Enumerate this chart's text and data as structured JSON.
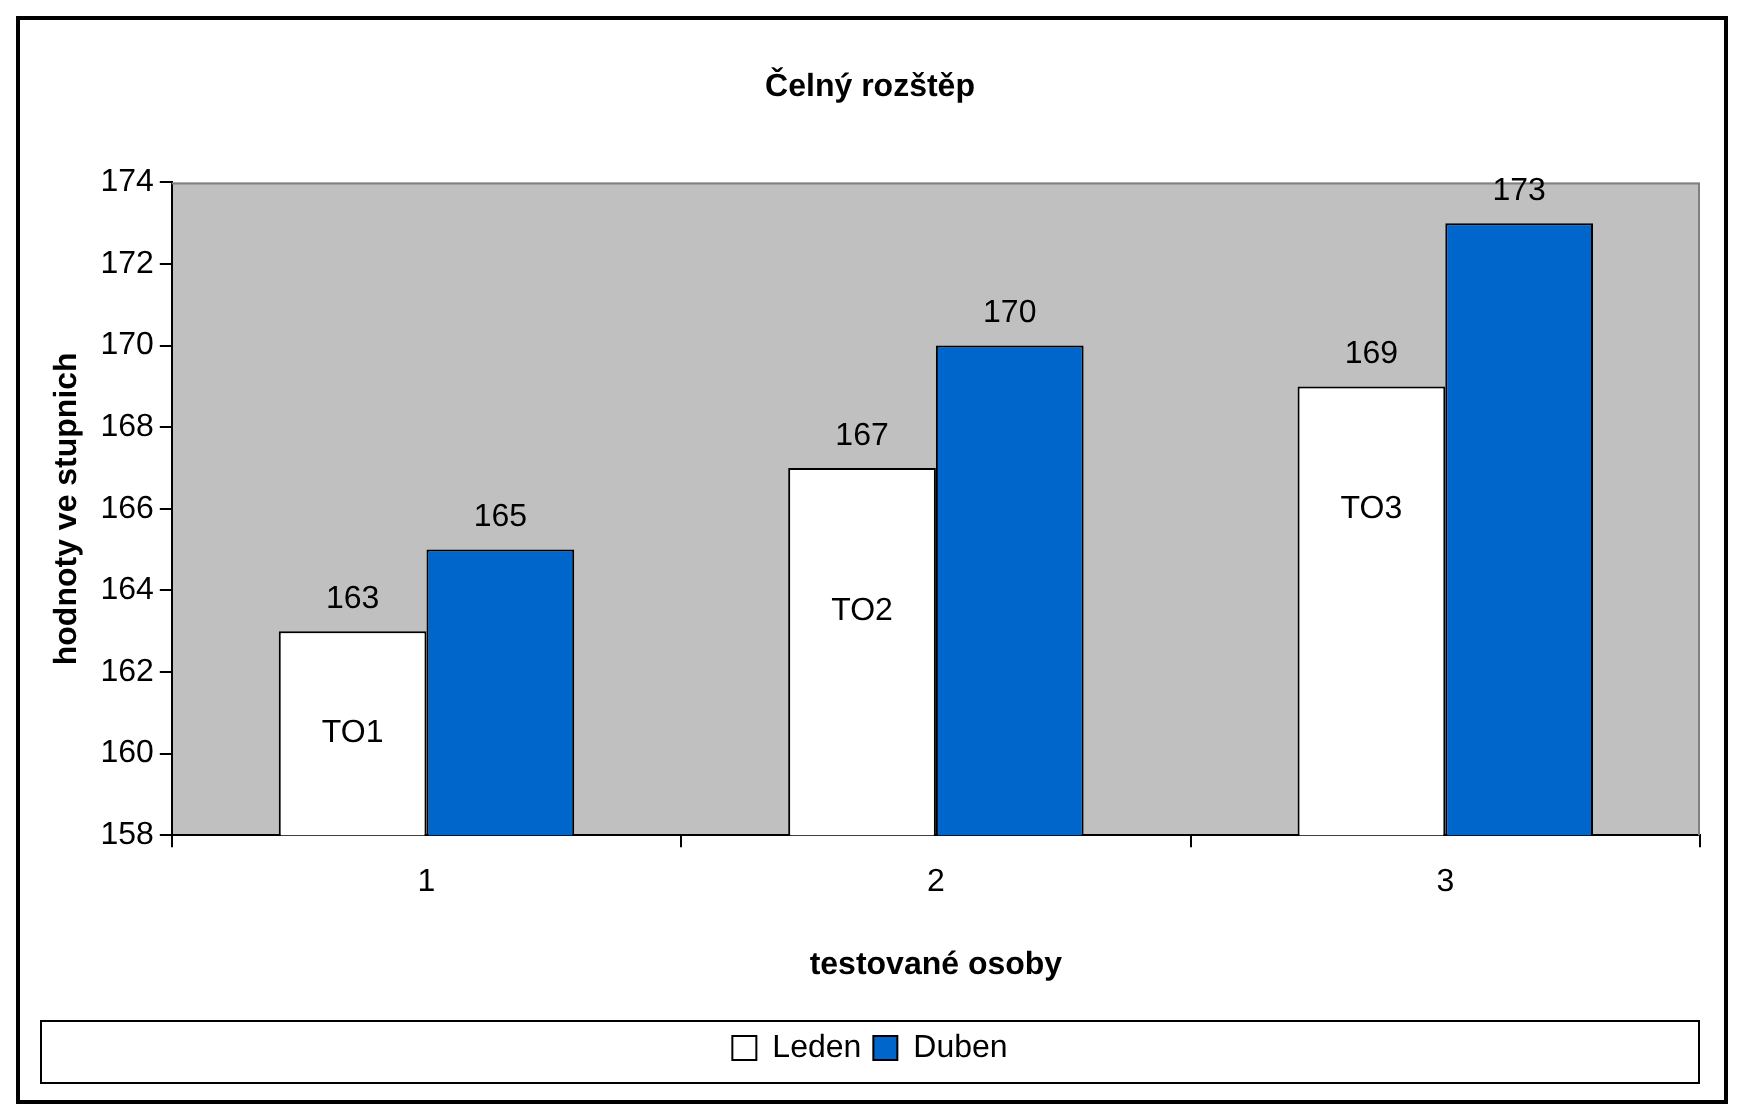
{
  "chart_data": {
    "type": "bar",
    "title": "Čelný rozštěp",
    "xlabel": "testované osoby",
    "ylabel": "hodnoty ve stupnich",
    "categories": [
      "1",
      "2",
      "3"
    ],
    "series": [
      {
        "name": "Leden",
        "color": "#ffffff",
        "values": [
          163,
          167,
          169
        ]
      },
      {
        "name": "Duben",
        "color": "#0066cc",
        "values": [
          165,
          170,
          173
        ]
      }
    ],
    "ylim": [
      158,
      174
    ],
    "yticks": [
      158,
      160,
      162,
      164,
      166,
      168,
      170,
      172,
      174
    ],
    "grid": false,
    "legend": "bottom",
    "data_labels": true,
    "annotations": [
      {
        "text": "TO1",
        "x": "1",
        "y": 160.5
      },
      {
        "text": "TO2",
        "x": "2",
        "y": 163.5
      },
      {
        "text": "TO3",
        "x": "3",
        "y": 166
      }
    ]
  }
}
